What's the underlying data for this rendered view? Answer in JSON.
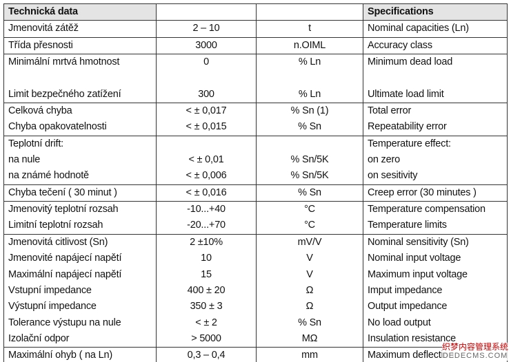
{
  "header": {
    "left": "Technická data",
    "right": "Specifications"
  },
  "groups": [
    {
      "rows": [
        [
          "Jmenovitá zátěž",
          "2 – 10",
          "t",
          "Nominal capacities (Ln)"
        ]
      ]
    },
    {
      "rows": [
        [
          "Třída přesnosti",
          "3000",
          "n.OIML",
          "Accuracy class"
        ]
      ]
    },
    {
      "rows": [
        [
          "Minimální mrtvá hmotnost",
          "0",
          "% Ln",
          "Minimum dead load"
        ],
        [
          null,
          null,
          null,
          null
        ],
        [
          "Limit bezpečného zatížení",
          "300",
          "% Ln",
          "Ultimate load limit"
        ]
      ]
    },
    {
      "rows": [
        [
          "Celková chyba",
          "< ± 0,017",
          "% Sn (1)",
          "Total error"
        ],
        [
          "Chyba opakovatelnosti",
          "< ± 0,015",
          "% Sn",
          "Repeatability error"
        ]
      ]
    },
    {
      "rows": [
        [
          "Teplotní drift:",
          null,
          null,
          "Temperature effect:"
        ],
        [
          "na nule",
          "< ± 0,01",
          "% Sn/5K",
          "on zero"
        ],
        [
          "na známé hodnotě",
          "< ± 0,006",
          "% Sn/5K",
          "on sesitivity"
        ]
      ]
    },
    {
      "rows": [
        [
          "Chyba tečení ( 30 minut )",
          "< ± 0,016",
          "% Sn",
          "Creep error (30 minutes )"
        ]
      ]
    },
    {
      "rows": [
        [
          "Jmenovitý teplotní rozsah",
          "-10...+40",
          "°C",
          "Temperature compensation"
        ],
        [
          "Limitní teplotní rozsah",
          "-20...+70",
          "°C",
          "Temperature limits"
        ]
      ]
    },
    {
      "rows": [
        [
          "Jmenovitá citlivost (Sn)",
          "2 ±10%",
          "mV/V",
          "Nominal sensitivity (Sn)"
        ],
        [
          "Jmenovité napájecí napětí",
          "10",
          "V",
          "Nominal input voltage"
        ],
        [
          "Maximální napájecí napětí",
          "15",
          "V",
          "Maximum input voltage"
        ],
        [
          "Vstupní impedance",
          "400 ± 20",
          "Ω",
          "Imput impedance"
        ],
        [
          "Výstupní impedance",
          "350 ± 3",
          "Ω",
          "Output impedance"
        ],
        [
          "Tolerance výstupu na nule",
          "< ± 2",
          "% Sn",
          "No load output"
        ],
        [
          "Izolační odpor",
          "> 5000",
          "MΩ",
          "Insulation resistance"
        ]
      ]
    },
    {
      "rows": [
        [
          "Maximální ohyb ( na Ln)",
          "0,3 – 0,4",
          "mm",
          "Maximum deflection"
        ]
      ]
    }
  ],
  "watermark": {
    "line1": "织梦内容管理系统",
    "line2": "DEDECMS.COM"
  }
}
